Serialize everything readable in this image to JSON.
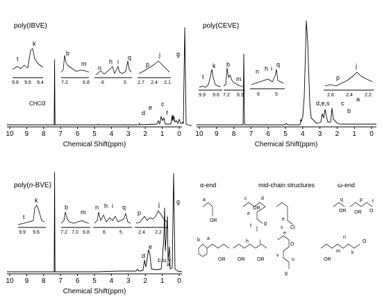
{
  "panels": {
    "ibve": {
      "title": "poly(IBVE)",
      "xlabel": "Chemical Shift(ppm)",
      "ticks": [
        "10",
        "9",
        "8",
        "7",
        "6",
        "5",
        "4",
        "3",
        "2",
        "1",
        "0"
      ],
      "solvent": "CHCl3",
      "peaks": [
        "d",
        "e",
        "c",
        "f",
        "b",
        "g"
      ],
      "insets": [
        {
          "ticks": [
            "9.8",
            "9.6",
            "9.4"
          ],
          "labels": [
            "t",
            "k"
          ]
        },
        {
          "ticks": [
            "7.2",
            "6.8"
          ],
          "labels": [
            "b",
            "m"
          ]
        },
        {
          "ticks": [
            "6",
            "5"
          ],
          "labels": [
            "n",
            "h",
            "i",
            "q"
          ]
        },
        {
          "ticks": [
            "2.7",
            "2.4",
            "2.1"
          ],
          "labels": [
            "p",
            "j"
          ]
        }
      ]
    },
    "ceve": {
      "title": "poly(CEVE)",
      "xlabel": "Chemical Shift(ppm)",
      "ticks": [
        "10",
        "9",
        "8",
        "7",
        "6",
        "5",
        "4",
        "3",
        "2",
        "1",
        "0"
      ],
      "peaks": [
        "d,e,s",
        "c",
        "b",
        "a"
      ],
      "insets": [
        {
          "ticks": [
            "9.9",
            "9.6"
          ],
          "labels": [
            "t",
            "k"
          ]
        },
        {
          "ticks": [
            "7.2",
            "6.9"
          ],
          "labels": [
            "b",
            "m"
          ]
        },
        {
          "ticks": [
            "6",
            "5"
          ],
          "labels": [
            "n",
            "h",
            "i",
            "q"
          ]
        },
        {
          "ticks": [
            "2.6",
            "2.4",
            "2.2"
          ],
          "labels": [
            "p",
            "j"
          ]
        }
      ]
    },
    "nbve": {
      "title_prefix": "poly(",
      "title_italic": "n",
      "title_suffix": "-BVE)",
      "xlabel": "Chemical Shift(ppm)",
      "ticks": [
        "10",
        "9",
        "8",
        "7",
        "6",
        "5",
        "4",
        "3",
        "2",
        "1",
        "0"
      ],
      "peaks": [
        "d",
        "e",
        "c,u,v",
        "a",
        "g"
      ],
      "insets": [
        {
          "ticks": [
            "9.9",
            "9.6"
          ],
          "labels": [
            "t",
            "k"
          ]
        },
        {
          "ticks": [
            "7.2",
            "7.0",
            "6.8"
          ],
          "labels": [
            "b",
            "m"
          ]
        },
        {
          "ticks": [
            "6",
            "5"
          ],
          "labels": [
            "n",
            "h",
            "i",
            "q"
          ]
        },
        {
          "ticks": [
            "2.4",
            "2.2"
          ],
          "labels": [
            "p",
            "j"
          ]
        }
      ]
    }
  },
  "structures": {
    "alpha_end": "α-end",
    "mid_chain": "mid-chain structures",
    "omega_end": "ω-end",
    "atom_labels": [
      "a",
      "OR",
      "c",
      "d",
      "e",
      "f",
      "g",
      "OR",
      "e",
      "s",
      "Cl",
      "q",
      "OR",
      "p",
      "OR",
      "t",
      "O",
      "a",
      "b",
      "OR",
      "h",
      "j",
      "OR",
      "OR",
      "e",
      "O",
      "v",
      "u",
      "g",
      "m",
      "n",
      "k",
      "O",
      "OR"
    ]
  }
}
